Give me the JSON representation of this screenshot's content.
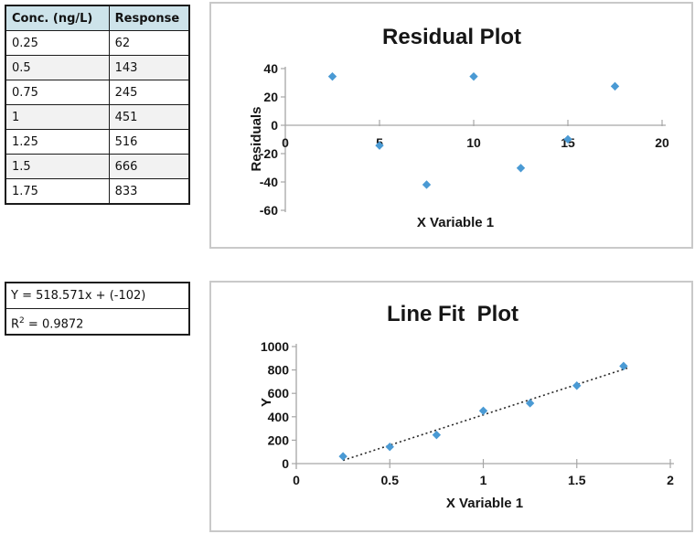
{
  "table": {
    "headers": [
      "Conc. (ng/L)",
      "Response"
    ],
    "rows": [
      [
        "0.25",
        "62"
      ],
      [
        "0.5",
        "143"
      ],
      [
        "0.75",
        "245"
      ],
      [
        "1",
        "451"
      ],
      [
        "1.25",
        "516"
      ],
      [
        "1.5",
        "666"
      ],
      [
        "1.75",
        "833"
      ]
    ]
  },
  "equation": {
    "line1": "Y = 518.571x + (-102)",
    "r2_base": "R",
    "r2_sup": "2",
    "r2_rest": " = 0.9872"
  },
  "colors": {
    "marker": "#4a9ad4",
    "axis": "#a6a6a6",
    "trendline": "#262626",
    "table_header_bg": "#cde3ea",
    "chart_border": "#c9c9c9",
    "alt_row_bg": "#f2f2f2"
  },
  "chart_data": [
    {
      "type": "scatter",
      "title": "Residual Plot",
      "xlabel": "X Variable 1",
      "ylabel": "Residuals",
      "xlim": [
        0,
        20
      ],
      "ylim": [
        -60,
        40
      ],
      "xticks": [
        0,
        5,
        10,
        15,
        20
      ],
      "yticks": [
        40,
        20,
        0,
        -20,
        -40,
        -60
      ],
      "grid": false,
      "legend": "none",
      "marker": "diamond",
      "marker_color": "#4a9ad4",
      "points": [
        {
          "x": 2.5,
          "y": 34.4
        },
        {
          "x": 5,
          "y": -14.3
        },
        {
          "x": 7.5,
          "y": -41.9
        },
        {
          "x": 10,
          "y": 34.4
        },
        {
          "x": 12.5,
          "y": -30.2
        },
        {
          "x": 15,
          "y": -9.9
        },
        {
          "x": 17.5,
          "y": 27.5
        }
      ]
    },
    {
      "type": "scatter",
      "title": "Line Fit  Plot",
      "xlabel": "X Variable 1",
      "ylabel": "Y",
      "xlim": [
        0,
        2
      ],
      "ylim": [
        0,
        1000
      ],
      "xticks": [
        0,
        0.5,
        1,
        1.5,
        2
      ],
      "yticks": [
        0,
        200,
        400,
        600,
        800,
        1000
      ],
      "grid": false,
      "legend": "none",
      "marker": "diamond",
      "marker_color": "#4a9ad4",
      "points": [
        {
          "x": 0.25,
          "y": 62
        },
        {
          "x": 0.5,
          "y": 143
        },
        {
          "x": 0.75,
          "y": 245
        },
        {
          "x": 1,
          "y": 451
        },
        {
          "x": 1.25,
          "y": 516
        },
        {
          "x": 1.5,
          "y": 666
        },
        {
          "x": 1.75,
          "y": 833
        }
      ],
      "trendline": {
        "style": "dotted",
        "x1": 0.25,
        "y1": 27.6,
        "x2": 1.77,
        "y2": 815.9
      }
    }
  ]
}
